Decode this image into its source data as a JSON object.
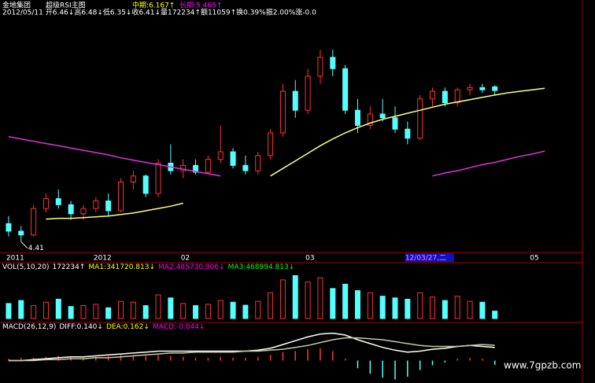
{
  "header": {
    "stock": "金地集团",
    "indicator": "超级RSI主图",
    "mid": "中期:6.167↑",
    "long": "长期:5.465↑",
    "info": "2012/05/11 开6.46↓高6.48↓低6.35↓收6.41↓量172234↑额11059↑换0.39%振2.00%涨-0.0"
  },
  "chart_data": [
    {
      "type": "candlestick",
      "up_color": "#ff3232",
      "down_color": "#54ffff",
      "categories": [
        "2011",
        null,
        null,
        null,
        null,
        null,
        null,
        "2012",
        null,
        null,
        null,
        null,
        null,
        null,
        "02",
        null,
        null,
        null,
        null,
        null,
        null,
        null,
        null,
        null,
        "03",
        null,
        null,
        null,
        null,
        null,
        null,
        null,
        "12/03/27,二",
        null,
        null,
        null,
        null,
        null,
        null,
        null,
        null,
        null,
        "05",
        null
      ],
      "highlight_category": 32,
      "ohlc": [
        [
          4.65,
          4.75,
          4.48,
          4.55
        ],
        [
          4.55,
          4.62,
          4.41,
          4.5
        ],
        [
          4.5,
          4.9,
          4.48,
          4.85
        ],
        [
          4.85,
          5.05,
          4.8,
          4.98
        ],
        [
          4.98,
          5.1,
          4.85,
          4.9
        ],
        [
          4.9,
          4.95,
          4.7,
          4.78
        ],
        [
          4.78,
          4.9,
          4.7,
          4.85
        ],
        [
          4.85,
          5.0,
          4.8,
          4.95
        ],
        [
          4.95,
          5.05,
          4.75,
          4.82
        ],
        [
          4.82,
          5.25,
          4.8,
          5.2
        ],
        [
          5.2,
          5.35,
          5.1,
          5.28
        ],
        [
          5.28,
          5.3,
          5.0,
          5.05
        ],
        [
          5.05,
          5.5,
          5.0,
          5.45
        ],
        [
          5.45,
          5.7,
          5.3,
          5.35
        ],
        [
          5.35,
          5.5,
          5.25,
          5.42
        ],
        [
          5.42,
          5.5,
          5.3,
          5.33
        ],
        [
          5.33,
          5.55,
          5.3,
          5.5
        ],
        [
          5.5,
          5.95,
          5.45,
          5.6
        ],
        [
          5.6,
          5.65,
          5.38,
          5.42
        ],
        [
          5.42,
          5.55,
          5.3,
          5.35
        ],
        [
          5.35,
          5.6,
          5.3,
          5.55
        ],
        [
          5.55,
          5.9,
          5.5,
          5.85
        ],
        [
          5.85,
          6.5,
          5.8,
          6.4
        ],
        [
          6.4,
          6.55,
          6.05,
          6.15
        ],
        [
          6.15,
          6.7,
          6.1,
          6.6
        ],
        [
          6.6,
          6.95,
          6.5,
          6.85
        ],
        [
          6.85,
          6.95,
          6.6,
          6.7
        ],
        [
          6.7,
          6.75,
          6.1,
          6.15
        ],
        [
          6.15,
          6.3,
          5.85,
          5.95
        ],
        [
          5.95,
          6.2,
          5.9,
          6.1
        ],
        [
          6.1,
          6.3,
          6.0,
          6.05
        ],
        [
          6.05,
          6.2,
          5.85,
          5.9
        ],
        [
          5.9,
          6.0,
          5.7,
          5.78
        ],
        [
          5.78,
          6.35,
          5.75,
          6.3
        ],
        [
          6.3,
          6.45,
          6.2,
          6.4
        ],
        [
          6.4,
          6.45,
          6.2,
          6.25
        ],
        [
          6.25,
          6.45,
          6.2,
          6.42
        ],
        [
          6.42,
          6.5,
          6.35,
          6.45
        ],
        [
          6.45,
          6.5,
          6.38,
          6.42
        ],
        [
          6.46,
          6.48,
          6.35,
          6.41
        ],
        null,
        null,
        null,
        null
      ],
      "series": [
        {
          "color": "#ffff80",
          "values": [
            null,
            null,
            null,
            4.71,
            4.72,
            4.72,
            4.73,
            4.74,
            4.75,
            4.77,
            4.79,
            4.82,
            4.85,
            4.88,
            4.92,
            null,
            null,
            null,
            null,
            null,
            null,
            5.28,
            5.38,
            5.48,
            5.58,
            5.68,
            5.77,
            5.85,
            5.92,
            5.98,
            6.03,
            6.07,
            6.11,
            6.15,
            6.19,
            6.23,
            6.26,
            6.29,
            6.32,
            6.35,
            6.38,
            6.4,
            6.42,
            6.44
          ]
        },
        {
          "color": "#e030e0",
          "values": [
            5.8,
            5.77,
            5.74,
            5.71,
            5.68,
            5.65,
            5.62,
            5.59,
            5.56,
            5.52,
            5.49,
            5.46,
            5.43,
            5.4,
            5.37,
            5.34,
            5.31,
            5.28,
            null,
            null,
            null,
            null,
            null,
            null,
            null,
            null,
            null,
            null,
            null,
            null,
            null,
            null,
            null,
            null,
            5.28,
            5.32,
            5.35,
            5.39,
            5.43,
            5.46,
            5.5,
            5.54,
            5.57,
            5.61
          ]
        }
      ],
      "min_annotation": 4.41,
      "ylim": [
        4.3,
        7.4
      ]
    },
    {
      "type": "volume",
      "legend": [
        {
          "text": "VOL(5,10,20)",
          "color": "#ffffff"
        },
        {
          "text": "172234↑",
          "color": "#ffffff"
        },
        {
          "text": "MA1:341720.813↓",
          "color": "#ffff00"
        },
        {
          "text": "MA2:485730.906↓",
          "color": "#ff00ff"
        },
        {
          "text": "MA3:468994.813↓",
          "color": "#00ff00"
        }
      ],
      "values": [
        350000,
        420000,
        300000,
        380000,
        450000,
        280000,
        300000,
        330000,
        250000,
        400000,
        380000,
        300000,
        550000,
        480000,
        350000,
        300000,
        330000,
        420000,
        380000,
        310000,
        400000,
        600000,
        900000,
        1000000,
        850000,
        950000,
        700000,
        800000,
        650000,
        600000,
        520000,
        480000,
        450000,
        600000,
        500000,
        420000,
        520000,
        400000,
        380000,
        172234,
        null,
        null,
        null,
        null
      ],
      "ylim": [
        0,
        1100000
      ]
    },
    {
      "type": "macd",
      "legend": [
        {
          "text": "MACD(26,12,9)",
          "color": "#ffffff"
        },
        {
          "text": "DIFF:0.140↓",
          "color": "#ffffff"
        },
        {
          "text": "DEA:0.162↓",
          "color": "#ffff00"
        },
        {
          "text": "MACD:-0.044↓",
          "color": "#ff00ff"
        }
      ],
      "up_color": "#ff3232",
      "down_color": "#54ffff",
      "values": [
        0.02,
        0.03,
        0.03,
        0.04,
        0.05,
        0.04,
        0.03,
        0.04,
        0.05,
        0.06,
        0.06,
        0.05,
        0.06,
        0.05,
        0.04,
        0.03,
        0.03,
        0.04,
        0.03,
        0.03,
        0.04,
        0.06,
        0.09,
        0.1,
        0.12,
        0.13,
        0.1,
        0.02,
        -0.08,
        -0.14,
        -0.18,
        -0.2,
        -0.17,
        -0.1,
        -0.05,
        -0.02,
        0.02,
        0.03,
        0.02,
        -0.044,
        null,
        null,
        null,
        null
      ],
      "series": [
        {
          "color": "#ffffff",
          "values": [
            0,
            0,
            0.01,
            0.02,
            0.03,
            0.04,
            0.04,
            0.05,
            0.06,
            0.07,
            0.08,
            0.09,
            0.1,
            0.1,
            0.1,
            0.1,
            0.1,
            0.1,
            0.1,
            0.1,
            0.11,
            0.13,
            0.17,
            0.21,
            0.25,
            0.28,
            0.29,
            0.27,
            0.22,
            0.18,
            0.14,
            0.11,
            0.09,
            0.1,
            0.12,
            0.13,
            0.15,
            0.16,
            0.15,
            0.14,
            null,
            null,
            null,
            null
          ]
        },
        {
          "color": "#c8c8a0",
          "values": [
            0,
            0,
            0,
            0.01,
            0.01,
            0.02,
            0.02,
            0.03,
            0.03,
            0.04,
            0.05,
            0.06,
            0.07,
            0.08,
            0.08,
            0.09,
            0.09,
            0.09,
            0.09,
            0.1,
            0.1,
            0.11,
            0.12,
            0.14,
            0.16,
            0.19,
            0.22,
            0.24,
            0.24,
            0.23,
            0.22,
            0.2,
            0.18,
            0.16,
            0.15,
            0.15,
            0.15,
            0.16,
            0.17,
            0.162,
            null,
            null,
            null,
            null
          ]
        }
      ],
      "ylim": [
        -0.22,
        0.32
      ]
    }
  ],
  "watermark": "www.7gpzb.com"
}
